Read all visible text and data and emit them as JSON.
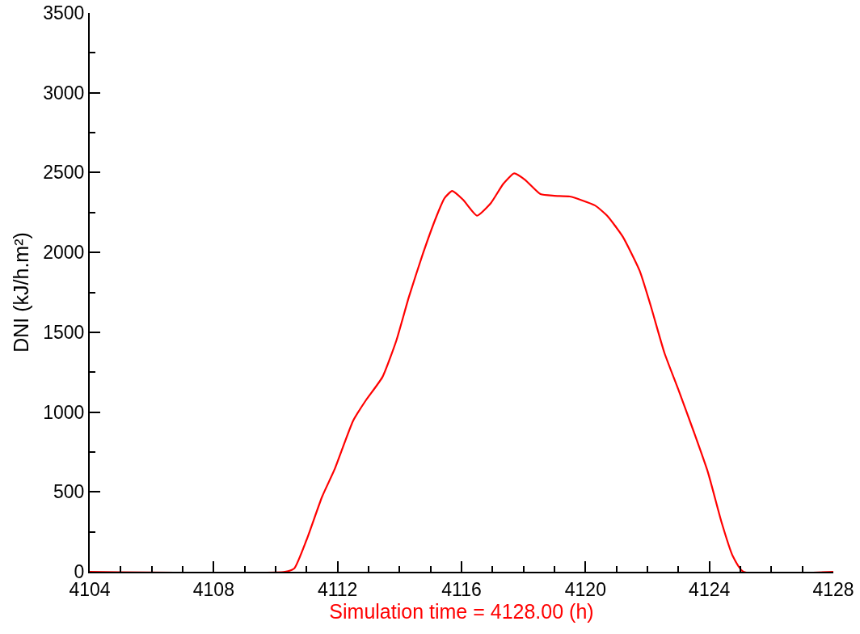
{
  "chart_data": {
    "type": "line",
    "xlabel": "Simulation time = 4128.00 (h)",
    "ylabel": "DNI (kJ/h.m²)",
    "x": [
      4104,
      4110.3,
      4110.6,
      4111,
      4111.5,
      4111.9,
      4112.5,
      4112.9,
      4113.45,
      4113.9,
      4114.3,
      4114.75,
      4115.2,
      4115.45,
      4115.7,
      4116.05,
      4116.5,
      4116.95,
      4117.35,
      4117.7,
      4118.05,
      4118.55,
      4119,
      4119.5,
      4120.3,
      4120.7,
      4121.2,
      4121.75,
      4122.1,
      4122.55,
      4123,
      4123.5,
      4123.95,
      4124.4,
      4124.75,
      4125.1,
      4128
    ],
    "series": [
      {
        "color": "#ff0000",
        "values": [
          0,
          0,
          20,
          200,
          470,
          640,
          945,
          1070,
          1220,
          1450,
          1720,
          1990,
          2230,
          2340,
          2385,
          2330,
          2230,
          2310,
          2430,
          2495,
          2455,
          2365,
          2355,
          2350,
          2295,
          2230,
          2100,
          1885,
          1670,
          1370,
          1140,
          875,
          625,
          305,
          100,
          0,
          0
        ]
      }
    ],
    "xlim": [
      4104,
      4128
    ],
    "xticks": [
      4104,
      {
        "value": 4105,
        "label": null
      },
      {
        "value": 4106,
        "label": null
      },
      {
        "value": 4107,
        "label": null
      },
      4108,
      {
        "value": 4109,
        "label": null
      },
      {
        "value": 4110,
        "label": null
      },
      {
        "value": 4111,
        "label": null
      },
      4112,
      {
        "value": 4113,
        "label": null
      },
      {
        "value": 4114,
        "label": null
      },
      {
        "value": 4115,
        "label": null
      },
      4116,
      {
        "value": 4117,
        "label": null
      },
      {
        "value": 4118,
        "label": null
      },
      {
        "value": 4119,
        "label": null
      },
      4120,
      {
        "value": 4121,
        "label": null
      },
      {
        "value": 4122,
        "label": null
      },
      {
        "value": 4123,
        "label": null
      },
      4124,
      {
        "value": 4125,
        "label": null
      },
      {
        "value": 4126,
        "label": null
      },
      {
        "value": 4127,
        "label": null
      },
      4128
    ],
    "ylim": [
      0,
      3500
    ],
    "yticks": [
      0,
      {
        "value": 250,
        "label": null
      },
      500,
      {
        "value": 750,
        "label": null
      },
      1000,
      {
        "value": 1250,
        "label": null
      },
      1500,
      {
        "value": 1750,
        "label": null
      },
      2000,
      {
        "value": 2250,
        "label": null
      },
      2500,
      {
        "value": 2750,
        "label": null
      },
      3000,
      {
        "value": 3250,
        "label": null
      },
      3500
    ],
    "marker": "none",
    "line_style": "solid"
  }
}
